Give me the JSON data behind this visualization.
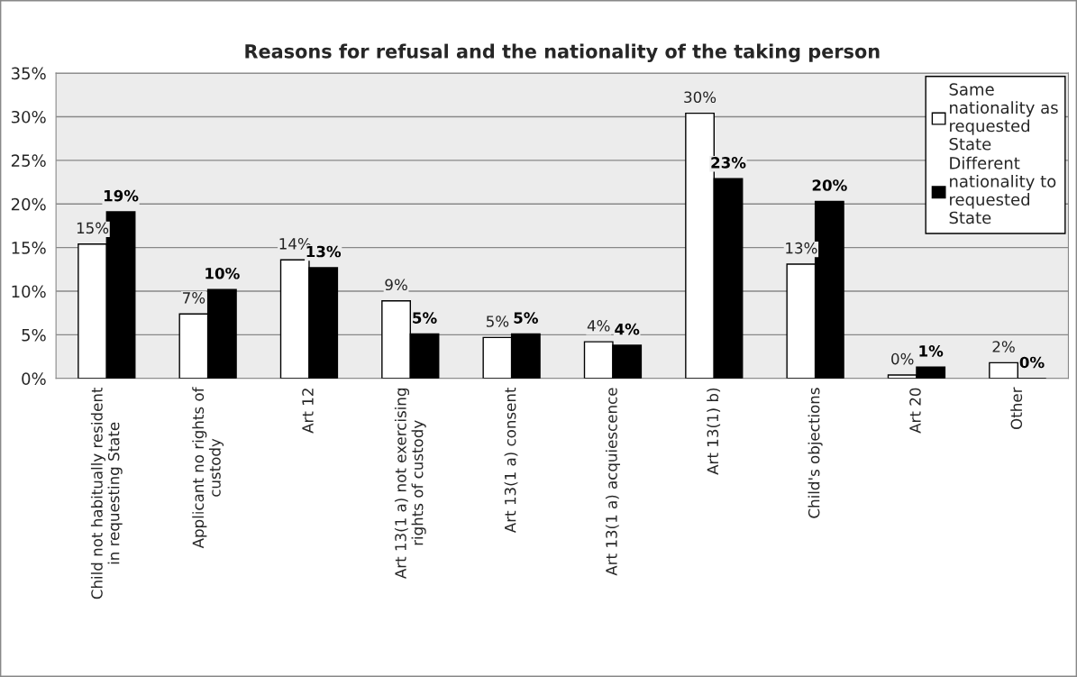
{
  "chart_data": {
    "type": "bar",
    "title": "Reasons for refusal and the nationality of the taking person",
    "categories": [
      "Child not habitually resident\nin requesting State",
      "Applicant no rights of\ncustody",
      "Art 12",
      "Art 13(1 a) not exercising\nrights of custody",
      "Art 13(1 a) consent",
      "Art 13(1 a) acquiescence",
      "Art 13(1) b)",
      "Child's objections",
      "Art 20",
      "Other"
    ],
    "series": [
      {
        "name": "Same\nnationality as\nrequested\nState",
        "color": "#ffffff",
        "values": [
          15.4,
          7.4,
          13.6,
          8.9,
          4.7,
          4.2,
          30.4,
          13.1,
          0.4,
          1.8
        ],
        "value_labels": [
          "15%",
          "7%",
          "14%",
          "9%",
          "5%",
          "4%",
          "30%",
          "13%",
          "0%",
          "2%"
        ]
      },
      {
        "name": "Different\nnationality to\nrequested\nState",
        "color": "#000000",
        "values": [
          19.1,
          10.2,
          12.7,
          5.1,
          5.1,
          3.8,
          22.9,
          20.3,
          1.3,
          0.0
        ],
        "value_labels": [
          "19%",
          "10%",
          "13%",
          "5%",
          "5%",
          "4%",
          "23%",
          "20%",
          "1%",
          "0%"
        ]
      }
    ],
    "ylim": [
      0,
      35
    ],
    "yticks": [
      {
        "value": 0,
        "label": "0%"
      },
      {
        "value": 5,
        "label": "5%"
      },
      {
        "value": 10,
        "label": "10%"
      },
      {
        "value": 15,
        "label": "15%"
      },
      {
        "value": 20,
        "label": "20%"
      },
      {
        "value": 25,
        "label": "25%"
      },
      {
        "value": 30,
        "label": "30%"
      },
      {
        "value": 35,
        "label": "35%"
      }
    ],
    "grid": "y",
    "legend": "top right"
  }
}
